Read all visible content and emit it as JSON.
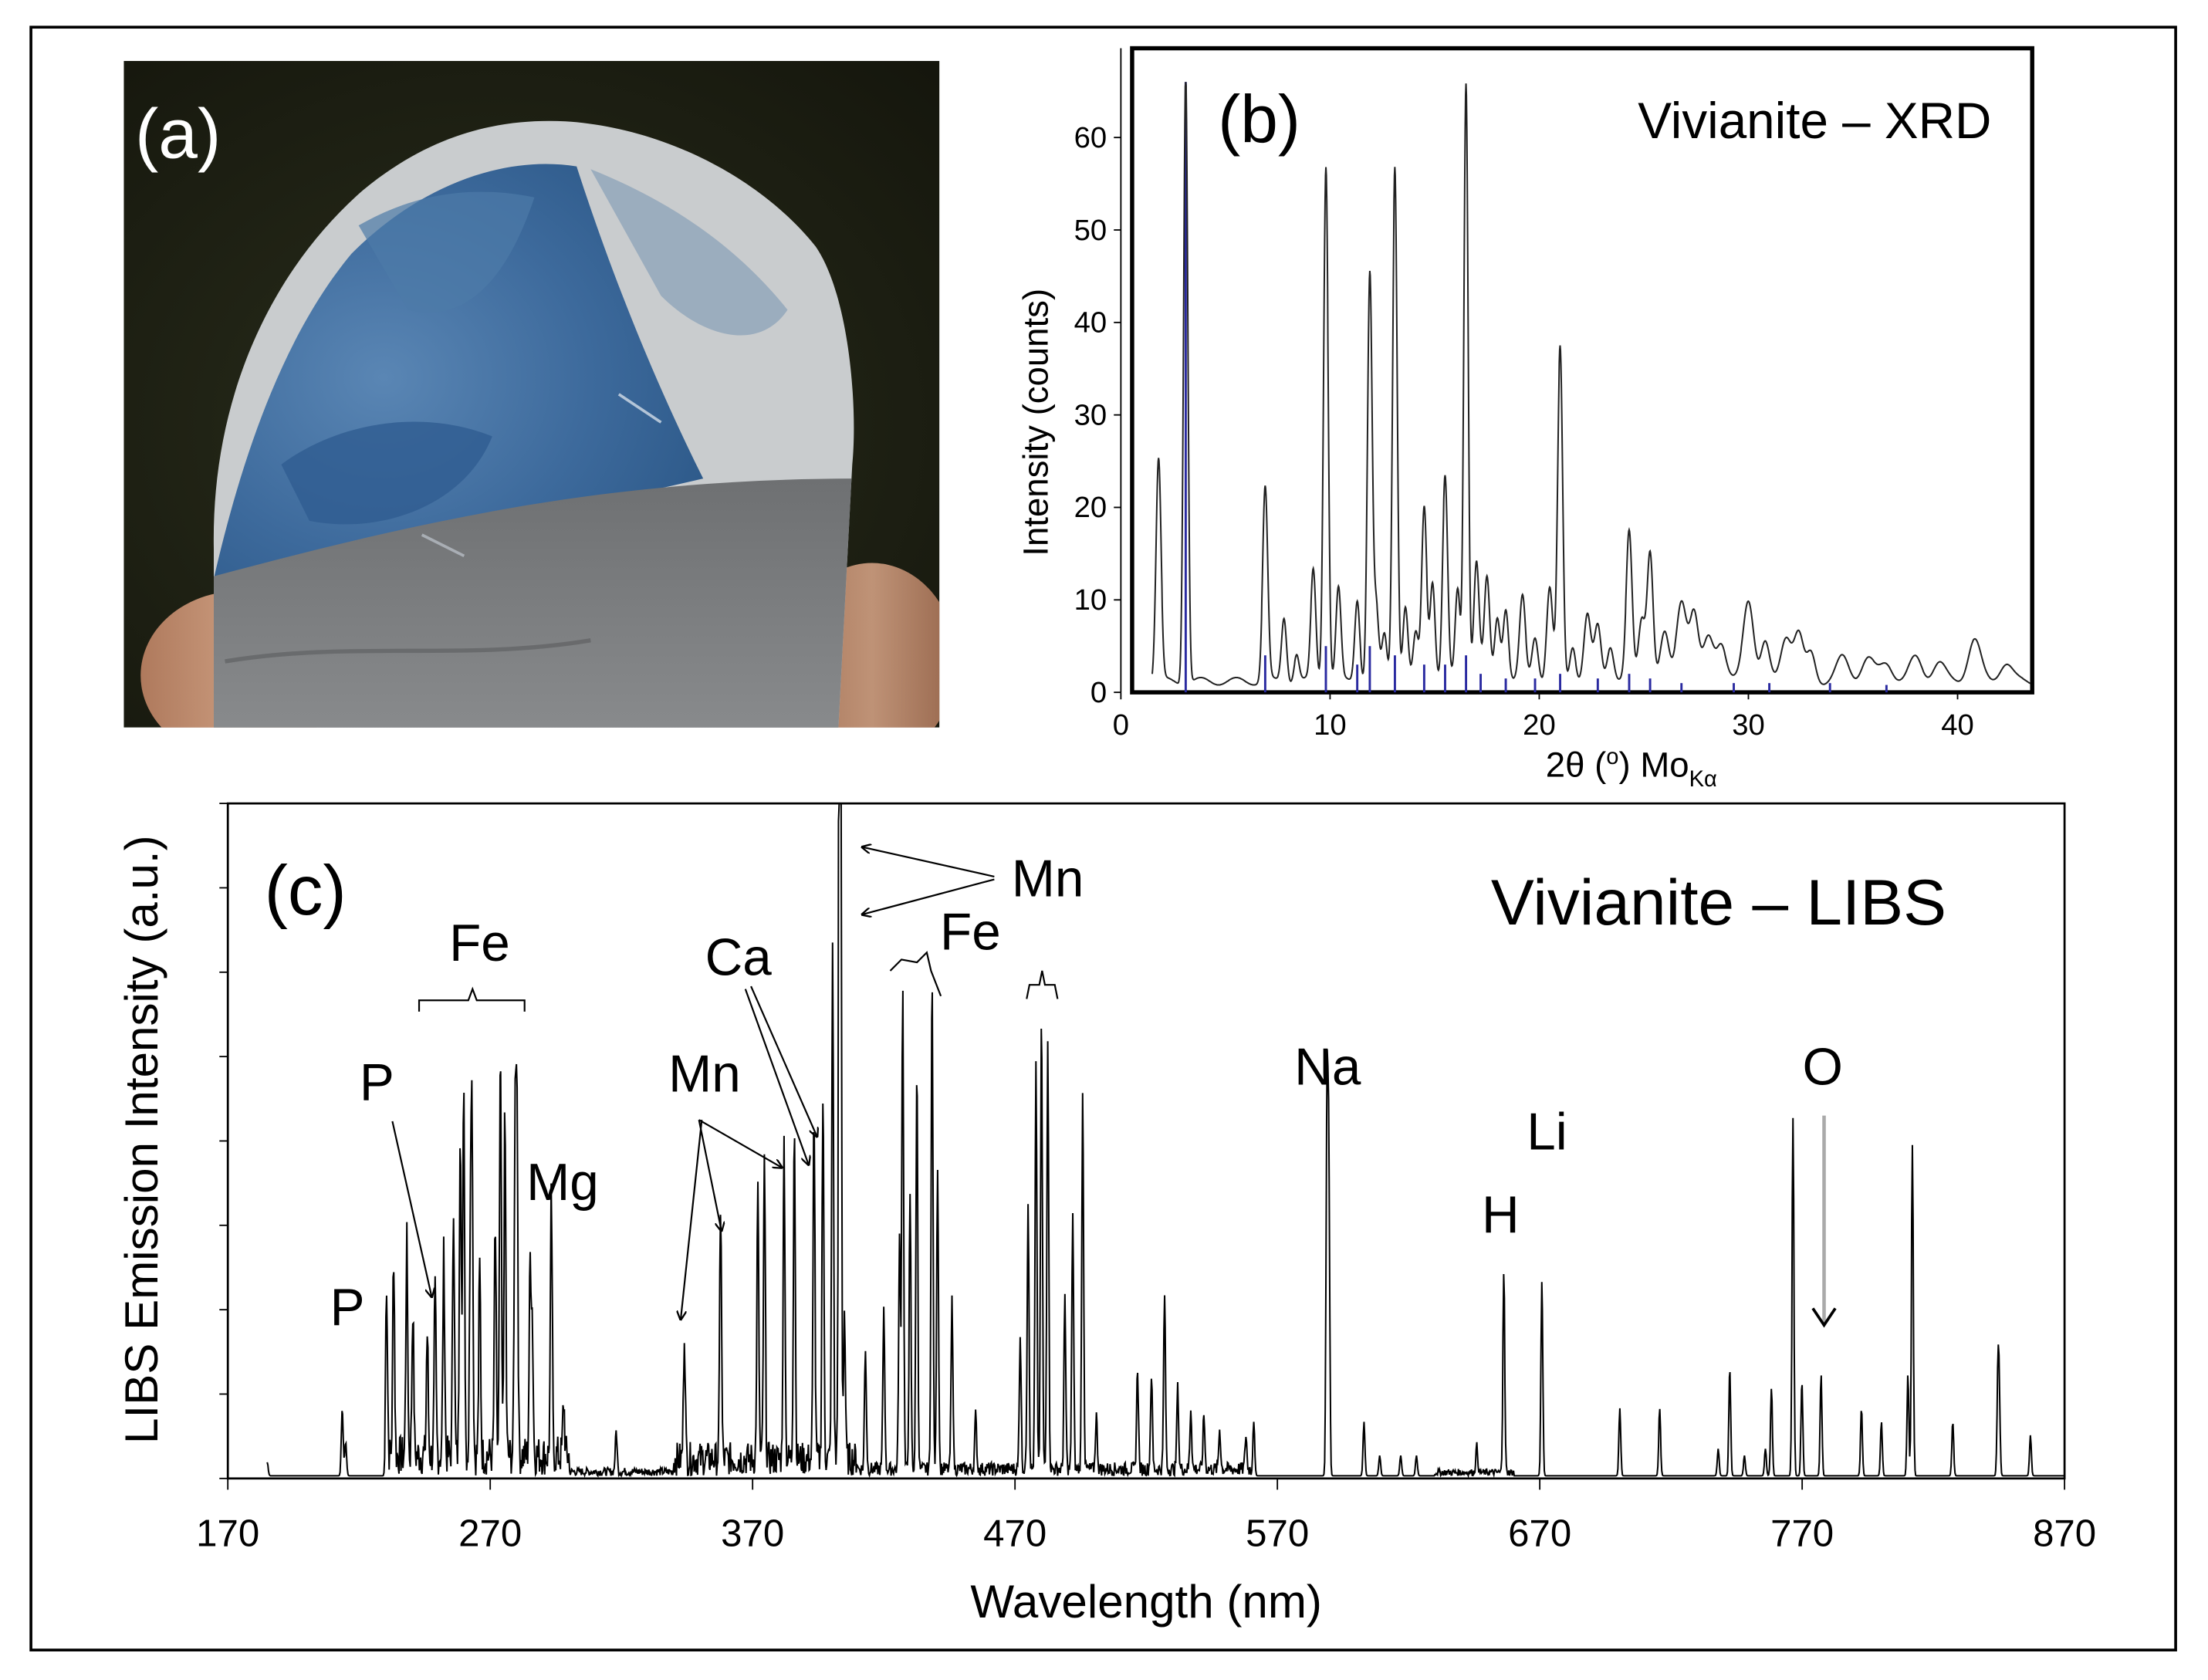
{
  "panel_a": {
    "label": "(a)"
  },
  "panel_b": {
    "label": "(b)"
  },
  "panel_c": {
    "label": "(c)"
  },
  "chart_data": [
    {
      "type": "line",
      "panel": "(b)",
      "title": "Vivianite – XRD",
      "xlabel_main": "2θ (",
      "xlabel_degree": "o",
      "xlabel_close": ") Mo",
      "xlabel_sub": "Kα",
      "ylabel": "Intensity (counts)",
      "xlim": [
        0,
        43.5
      ],
      "ylim": [
        0,
        66
      ],
      "xticks": [
        0,
        10,
        20,
        30,
        40
      ],
      "yticks": [
        0,
        10,
        20,
        30,
        40,
        50,
        60
      ],
      "grid": false,
      "colors": {
        "pattern": "#222222",
        "reference_sticks": "#2a2aa0"
      },
      "series": [
        {
          "role": "pattern",
          "baseline": 1.2,
          "peaks": [
            [
              1.8,
              24,
              0.12
            ],
            [
              3.1,
              66,
              0.1
            ],
            [
              6.9,
              21,
              0.12
            ],
            [
              7.8,
              7,
              0.12
            ],
            [
              8.4,
              3,
              0.12
            ],
            [
              9.2,
              12,
              0.12
            ],
            [
              9.8,
              56,
              0.11
            ],
            [
              10.4,
              10,
              0.12
            ],
            [
              11.3,
              9,
              0.12
            ],
            [
              11.9,
              44,
              0.11
            ],
            [
              12.2,
              8,
              0.12
            ],
            [
              12.6,
              5,
              0.12
            ],
            [
              13.1,
              56,
              0.11
            ],
            [
              13.6,
              8,
              0.12
            ],
            [
              14.1,
              5,
              0.12
            ],
            [
              14.5,
              19,
              0.12
            ],
            [
              14.9,
              11,
              0.12
            ],
            [
              15.5,
              22,
              0.12
            ],
            [
              16.1,
              10,
              0.12
            ],
            [
              16.5,
              65,
              0.1
            ],
            [
              17.0,
              13,
              0.13
            ],
            [
              17.5,
              11,
              0.13
            ],
            [
              18.0,
              7,
              0.13
            ],
            [
              18.4,
              8,
              0.13
            ],
            [
              19.2,
              9,
              0.14
            ],
            [
              19.8,
              5,
              0.15
            ],
            [
              20.5,
              10,
              0.14
            ],
            [
              21.0,
              36,
              0.12
            ],
            [
              21.6,
              4,
              0.14
            ],
            [
              22.3,
              7,
              0.16
            ],
            [
              22.8,
              6,
              0.16
            ],
            [
              23.4,
              4,
              0.16
            ],
            [
              24.3,
              16,
              0.14
            ],
            [
              24.9,
              7,
              0.16
            ],
            [
              25.3,
              14,
              0.14
            ],
            [
              26.0,
              5,
              0.2
            ],
            [
              26.8,
              9,
              0.24
            ],
            [
              27.4,
              7,
              0.2
            ],
            [
              28.1,
              5,
              0.25
            ],
            [
              28.7,
              4,
              0.22
            ],
            [
              30.0,
              9,
              0.25
            ],
            [
              30.8,
              4,
              0.2
            ],
            [
              31.8,
              5,
              0.25
            ],
            [
              32.4,
              5,
              0.22
            ],
            [
              33.0,
              3,
              0.2
            ],
            [
              34.5,
              2.5,
              0.3
            ],
            [
              35.7,
              2.5,
              0.3
            ],
            [
              36.6,
              2,
              0.3
            ],
            [
              38.0,
              2.5,
              0.3
            ],
            [
              39.1,
              2,
              0.3
            ],
            [
              40.8,
              4.5,
              0.3
            ],
            [
              42.3,
              2,
              0.3
            ]
          ]
        },
        {
          "role": "reference",
          "sticks": [
            [
              3.1,
              66
            ],
            [
              6.9,
              4
            ],
            [
              9.8,
              5
            ],
            [
              11.3,
              3
            ],
            [
              11.9,
              5
            ],
            [
              13.1,
              4
            ],
            [
              14.5,
              3
            ],
            [
              15.5,
              3
            ],
            [
              16.5,
              4
            ],
            [
              17.2,
              2
            ],
            [
              18.4,
              1.5
            ],
            [
              19.8,
              1.5
            ],
            [
              21.0,
              2
            ],
            [
              22.8,
              1.5
            ],
            [
              24.3,
              2
            ],
            [
              25.3,
              1.5
            ],
            [
              26.8,
              1
            ],
            [
              29.3,
              1
            ],
            [
              31.0,
              1
            ],
            [
              33.9,
              1
            ],
            [
              36.6,
              0.8
            ]
          ]
        }
      ]
    },
    {
      "type": "line",
      "panel": "(c)",
      "title": "Vivianite – LIBS",
      "xlabel": "Wavelength (nm)",
      "ylabel": "LIBS Emission Intensity (a.u.)",
      "xlim": [
        170,
        870
      ],
      "ylim": [
        0,
        1.0
      ],
      "xticks": [
        170,
        270,
        370,
        470,
        570,
        670,
        770,
        870
      ],
      "grid": false,
      "colors": {
        "spectrum": "#000000",
        "o_arrow": "#aaaaaa"
      },
      "series": [
        {
          "role": "spectrum",
          "baseline_regions": [
            [
              230,
              300,
              0.06
            ],
            [
              340,
              410,
              0.05
            ],
            [
              630,
              660,
              0.01
            ]
          ],
          "lines": [
            [
              185,
              0.02
            ],
            [
              213.6,
              0.1
            ],
            [
              214.9,
              0.05
            ],
            [
              230.5,
              0.26
            ],
            [
              233.2,
              0.3
            ],
            [
              238.2,
              0.32
            ],
            [
              240.5,
              0.22
            ],
            [
              246,
              0.18
            ],
            [
              249,
              0.24
            ],
            [
              252.3,
              0.3
            ],
            [
              256,
              0.38
            ],
            [
              258.6,
              0.5
            ],
            [
              259.9,
              0.56
            ],
            [
              262.5,
              0.35
            ],
            [
              263.1,
              0.44
            ],
            [
              266,
              0.28
            ],
            [
              271.9,
              0.34
            ],
            [
              273.9,
              0.59
            ],
            [
              275.6,
              0.5
            ],
            [
              279.5,
              0.48
            ],
            [
              280.2,
              0.5
            ],
            [
              285.2,
              0.28
            ],
            [
              286,
              0.2
            ],
            [
              293.3,
              0.38
            ],
            [
              298,
              0.08
            ],
            [
              318,
              0.06
            ],
            [
              344,
              0.19
            ],
            [
              357.8,
              0.38
            ],
            [
              372,
              0.4
            ],
            [
              374.5,
              0.44
            ],
            [
              382,
              0.47
            ],
            [
              385.9,
              0.5
            ],
            [
              393.4,
              0.52
            ],
            [
              396.8,
              0.54
            ],
            [
              400.5,
              0.75
            ],
            [
              403.1,
              0.97
            ],
            [
              403.3,
              0.9
            ],
            [
              403.5,
              0.8
            ],
            [
              405,
              0.22
            ],
            [
              413,
              0.18
            ],
            [
              420,
              0.24
            ],
            [
              426,
              0.34
            ],
            [
              427.2,
              0.72
            ],
            [
              430,
              0.4
            ],
            [
              432.6,
              0.6
            ],
            [
              438.4,
              0.73
            ],
            [
              440.5,
              0.45
            ],
            [
              446,
              0.25
            ],
            [
              455,
              0.08
            ],
            [
              472,
              0.2
            ],
            [
              475,
              0.4
            ],
            [
              478,
              0.6
            ],
            [
              480.1,
              0.67
            ],
            [
              482.5,
              0.64
            ],
            [
              489,
              0.25
            ],
            [
              492,
              0.38
            ],
            [
              495.8,
              0.56
            ],
            [
              501,
              0.08
            ],
            [
              516.7,
              0.15
            ],
            [
              522,
              0.14
            ],
            [
              527,
              0.26
            ],
            [
              532,
              0.12
            ],
            [
              537,
              0.09
            ],
            [
              542,
              0.08
            ],
            [
              548,
              0.06
            ],
            [
              558,
              0.05
            ],
            [
              561,
              0.08
            ],
            [
              588.9,
              0.55
            ],
            [
              589.6,
              0.45
            ],
            [
              603,
              0.08
            ],
            [
              609,
              0.03
            ],
            [
              617,
              0.03
            ],
            [
              623,
              0.03
            ],
            [
              646,
              0.04
            ],
            [
              656.3,
              0.3
            ],
            [
              670.8,
              0.29
            ],
            [
              700.5,
              0.1
            ],
            [
              715.7,
              0.1
            ],
            [
              738,
              0.04
            ],
            [
              742.4,
              0.16
            ],
            [
              748,
              0.03
            ],
            [
              756,
              0.04
            ],
            [
              758.3,
              0.13
            ],
            [
              766.5,
              0.53
            ],
            [
              769.9,
              0.14
            ],
            [
              777.2,
              0.15
            ],
            [
              792.6,
              0.1
            ],
            [
              800.2,
              0.08
            ],
            [
              810.3,
              0.15
            ],
            [
              812,
              0.49
            ],
            [
              827.4,
              0.08
            ],
            [
              844.6,
              0.14
            ],
            [
              845.1,
              0.11
            ],
            [
              857,
              0.06
            ]
          ]
        }
      ],
      "annotations": [
        {
          "id": "p1",
          "text": "P"
        },
        {
          "id": "p2",
          "text": "P"
        },
        {
          "id": "fe1",
          "text": "Fe"
        },
        {
          "id": "mg",
          "text": "Mg"
        },
        {
          "id": "mn1",
          "text": "Mn"
        },
        {
          "id": "ca",
          "text": "Ca"
        },
        {
          "id": "mn2",
          "text": "Mn"
        },
        {
          "id": "fe2",
          "text": "Fe"
        },
        {
          "id": "na",
          "text": "Na"
        },
        {
          "id": "h",
          "text": "H"
        },
        {
          "id": "li",
          "text": "Li"
        },
        {
          "id": "o",
          "text": "O"
        }
      ]
    }
  ]
}
